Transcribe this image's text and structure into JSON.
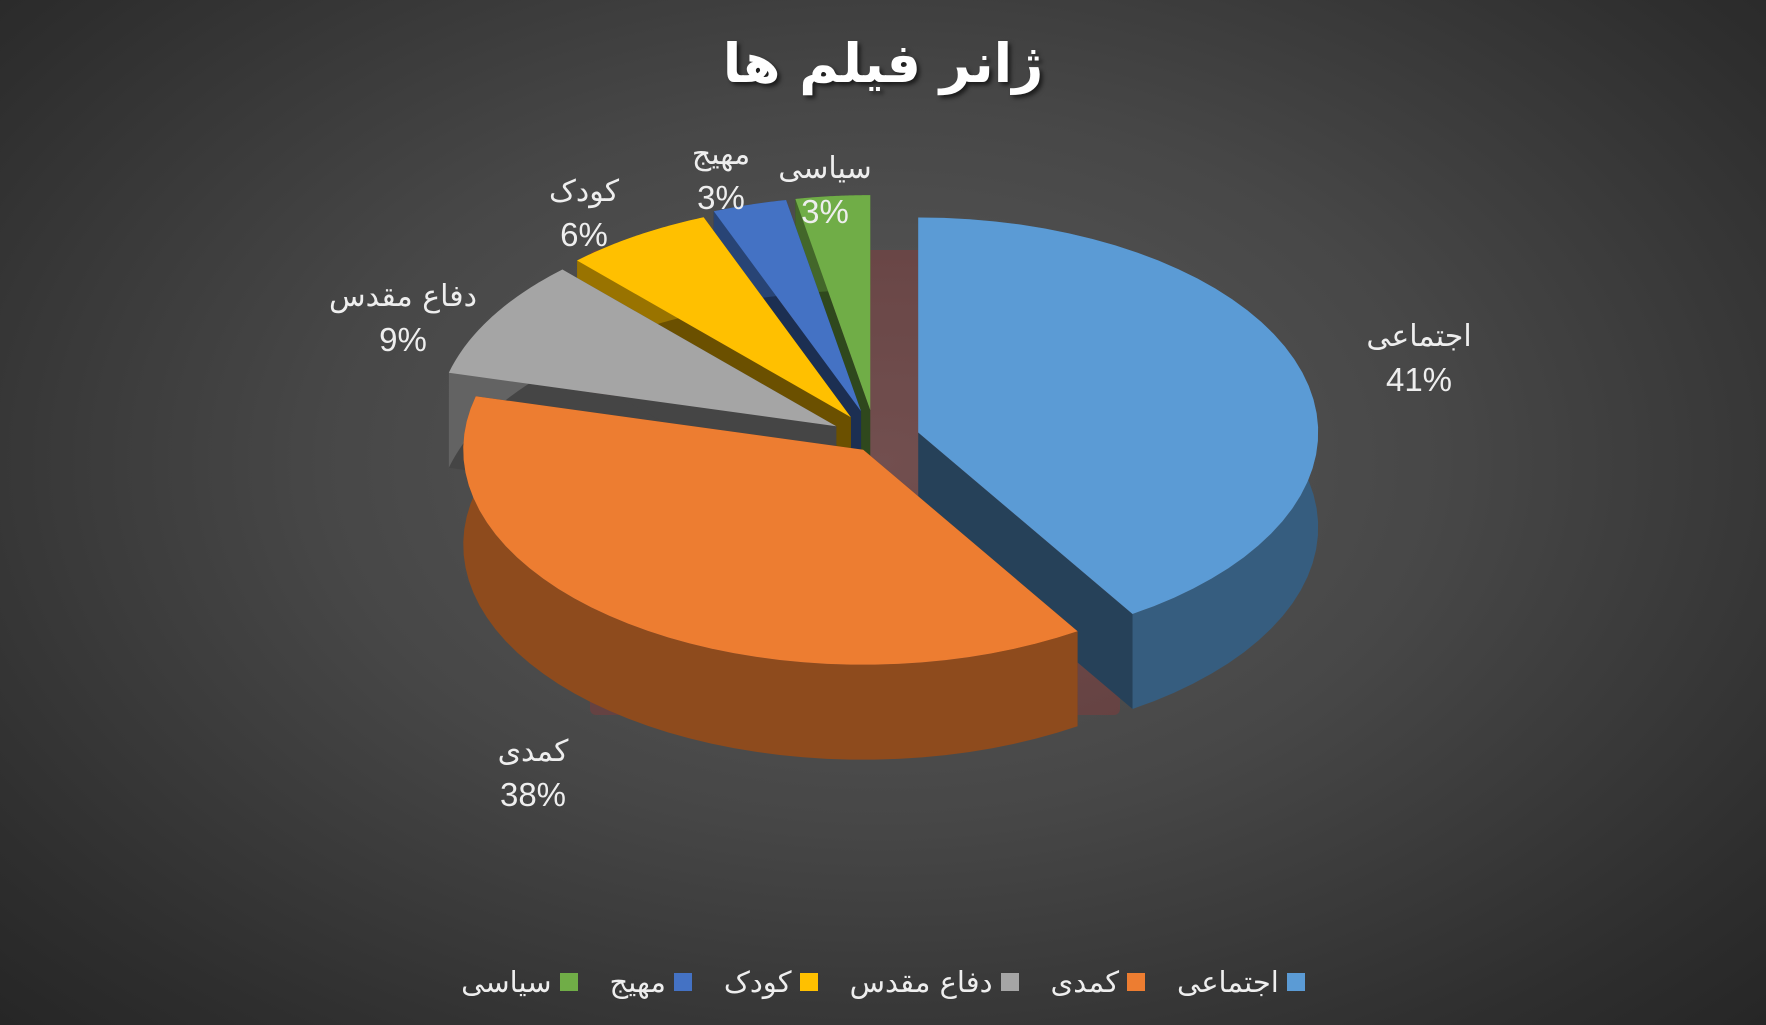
{
  "chart_data": {
    "type": "pie",
    "title": "ژانر فیلم ها",
    "categories": [
      "اجتماعی",
      "کمدی",
      "دفاع مقدس",
      "کودک",
      "مهیج",
      "سیاسی"
    ],
    "values": [
      41,
      38,
      9,
      6,
      3,
      3
    ],
    "data_labels": [
      "41%",
      "38%",
      "9%",
      "6%",
      "3%",
      "3%"
    ],
    "colors": [
      "#5b9bd5",
      "#ed7d31",
      "#a5a5a5",
      "#ffc000",
      "#4472c4",
      "#70ad47"
    ],
    "style": "3d-exploded",
    "legend_position": "bottom"
  }
}
